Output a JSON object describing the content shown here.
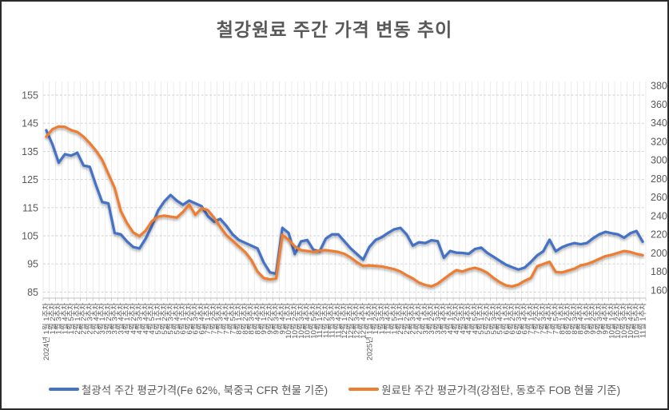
{
  "title": "철강원료 주간 가격 변동 추이",
  "legend": [
    {
      "label": "철광석 주간 평균가격(Fe 62%, 북중국 CFR 현물 기준)",
      "color": "#4472C4"
    },
    {
      "label": "원료탄 주간 평균가격(강점탄, 동호주 FOB 현물 기준)",
      "color": "#ED7D31"
    }
  ],
  "chart_data": {
    "type": "line",
    "title": "철강원료 주간 가격 변동 추이",
    "legend_position": "bottom",
    "grid": "horizontal-dashed and vertical-category-lines",
    "left_axis": {
      "min": 85,
      "max": 155,
      "tick_step": 10,
      "ticks": [
        155,
        145,
        135,
        125,
        115,
        105,
        95,
        85
      ]
    },
    "right_axis": {
      "min": 160,
      "max": 380,
      "tick_step": 20,
      "ticks": [
        380,
        360,
        340,
        320,
        300,
        280,
        260,
        240,
        220,
        200,
        180,
        160
      ]
    },
    "categories": [
      "2024년 1월 1주차",
      "1월 2주차",
      "1월 3주차",
      "1월 4주차",
      "1월 5주차",
      "2월 1주차",
      "2월 2주차",
      "2월 3주차",
      "2월 4주차",
      "3월 1주차",
      "3월 2주차",
      "3월 3주차",
      "3월 4주차",
      "4월 1주차",
      "4월 2주차",
      "4월 3주차",
      "4월 4주차",
      "4월 5주차",
      "5월 1주차",
      "5월 2주차",
      "5월 3주차",
      "5월 4주차",
      "6월 1주차",
      "6월 2주차",
      "6월 3주차",
      "6월 4주차",
      "7월 1주차",
      "7월 2주차",
      "7월 3주차",
      "7월 4주차",
      "7월 5주차",
      "8월 1주차",
      "8월 2주차",
      "8월 3주차",
      "8월 4주차",
      "9월 1주차",
      "9월 2주차",
      "9월 3주차",
      "9월 4주차",
      "10월 1주차",
      "10월 2주차",
      "10월 3주차",
      "10월 4주차",
      "10월 5주차",
      "11월 1주차",
      "11월 2주차",
      "11월 3주차",
      "11월 4주차",
      "12월 1주차",
      "12월 2주차",
      "12월 3주차",
      "12월 4주차",
      "2025년 1월 1주차",
      "1월 2주차",
      "1월 3주차",
      "1월 4주차",
      "1월 5주차",
      "2월 1주차",
      "2월 2주차",
      "2월 3주차",
      "2월 4주차",
      "3월 1주차",
      "3월 2주차",
      "3월 3주차",
      "3월 4주차",
      "4월 1주차",
      "4월 2주차",
      "4월 3주차",
      "4월 4주차",
      "4월 5주차",
      "5월 1주차",
      "5월 2주차",
      "5월 3주차",
      "5월 4주차",
      "6월 1주차",
      "6월 2주차",
      "6월 3주차",
      "6월 4주차",
      "7월 1주차",
      "7월 2주차",
      "7월 3주차",
      "7월 4주차",
      "7월 5주차",
      "8월 1주차",
      "8월 2주차",
      "8월 3주차",
      "8월 4주차",
      "9월 1주차",
      "9월 2주차",
      "9월 3주차",
      "9월 4주차",
      "10월 1주차",
      "10월 2주차",
      "10월 3주차",
      "10월 4주차",
      "10월 5주차",
      "11월 1주차"
    ],
    "series": [
      {
        "name": "철광석 주간 평균가격(Fe 62%, 북중국 CFR 현물 기준)",
        "axis": "left",
        "color": "#4472C4",
        "values": [
          142.5,
          137.5,
          131,
          134,
          133.5,
          134.5,
          130,
          129.5,
          123,
          117,
          116.5,
          106,
          105.5,
          103,
          101,
          100.5,
          104,
          108.5,
          114,
          117.2,
          119.5,
          117.5,
          116,
          117.5,
          116.5,
          115.5,
          112,
          110,
          111,
          108.5,
          105.5,
          103.5,
          102.5,
          101.5,
          100.5,
          95.5,
          92,
          91.5,
          107.8,
          106,
          98.5,
          103,
          103.5,
          100,
          99.5,
          104,
          105.5,
          105.5,
          103,
          100.5,
          98.5,
          96.5,
          101,
          103.5,
          104.5,
          106,
          107.3,
          107.8,
          105.5,
          101.5,
          102.7,
          102.4,
          103.4,
          103.1,
          97.2,
          99.6,
          99,
          98.9,
          98.6,
          100.3,
          100.8,
          98.9,
          97.5,
          96.1,
          94.7,
          93.8,
          93,
          93.7,
          95.7,
          98,
          99.5,
          103.6,
          99.5,
          100.9,
          101.8,
          102.4,
          102,
          102.4,
          104.1,
          105.5,
          106.4,
          105.9,
          105.5,
          104.3,
          105.9,
          106.7,
          102.9
        ]
      },
      {
        "name": "원료탄 주간 평균가격(강점탄, 동호주 FOB 현물 기준)",
        "axis": "right",
        "color": "#ED7D31",
        "values": [
          325,
          333,
          336,
          335.5,
          332,
          330,
          325,
          318,
          310,
          300,
          285,
          270,
          245,
          232,
          222,
          218,
          224,
          234,
          239,
          240,
          239,
          238,
          244,
          252,
          241,
          248,
          246,
          238,
          228,
          219,
          213,
          207,
          201,
          192.5,
          180,
          173,
          171.5,
          172.5,
          219.5,
          214,
          207,
          203,
          202,
          201,
          202.5,
          203,
          202,
          201,
          199,
          195,
          190,
          186,
          186.5,
          186,
          185.5,
          184,
          182.5,
          180,
          176,
          172.5,
          168,
          165.5,
          164,
          167,
          172,
          177,
          181.5,
          180,
          182.5,
          184,
          182,
          178.5,
          173,
          168.5,
          165,
          164,
          166,
          170,
          173,
          185.5,
          188,
          190.5,
          179.5,
          179,
          181,
          183,
          186.5,
          188,
          190.5,
          193.5,
          196.5,
          198,
          200,
          202,
          201,
          199,
          197.5
        ]
      }
    ]
  }
}
